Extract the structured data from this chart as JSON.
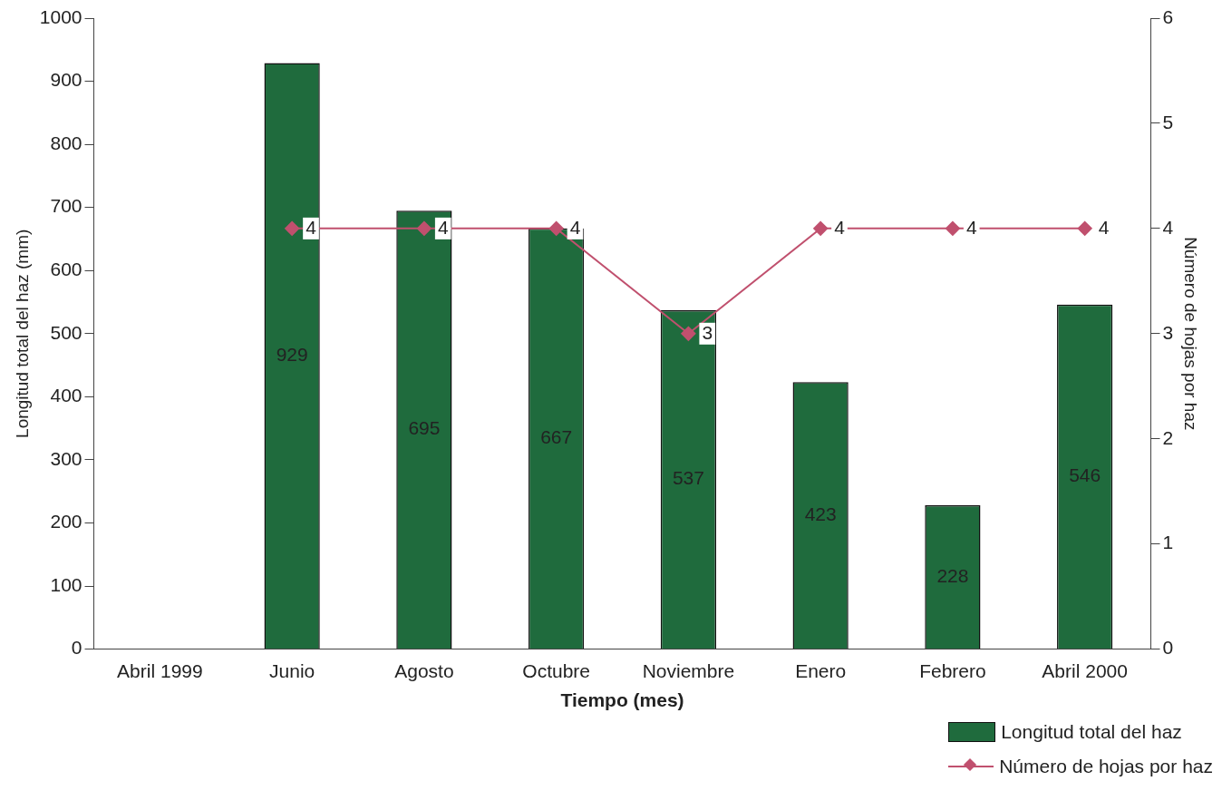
{
  "chart_data": {
    "type": "bar",
    "xlabel": "Tiempo (mes)",
    "ylabel": "Longitud total del haz (mm)",
    "y2label": "Número de hojas por haz",
    "categories": [
      "Abril 1999",
      "Junio",
      "Agosto",
      "Octubre",
      "Noviembre",
      "Enero",
      "Febrero",
      "Abril 2000"
    ],
    "series": [
      {
        "name": "Longitud total del haz",
        "color": "#1f6b3d",
        "values": [
          null,
          929,
          695,
          667,
          537,
          423,
          228,
          546
        ]
      },
      {
        "name": "Número de hojas por haz",
        "type": "line",
        "axis": "y2",
        "color": "#c0506e",
        "marker": "diamond",
        "values": [
          null,
          4,
          4,
          4,
          3,
          4,
          4,
          4
        ]
      }
    ],
    "ylim": [
      0,
      1000
    ],
    "yticks": [
      0,
      100,
      200,
      300,
      400,
      500,
      600,
      700,
      800,
      900,
      1000
    ],
    "y2lim": [
      0,
      6
    ],
    "y2ticks": [
      0,
      1,
      2,
      3,
      4,
      5,
      6
    ],
    "grid": false,
    "legend": "bottom right",
    "data_labels": true
  }
}
